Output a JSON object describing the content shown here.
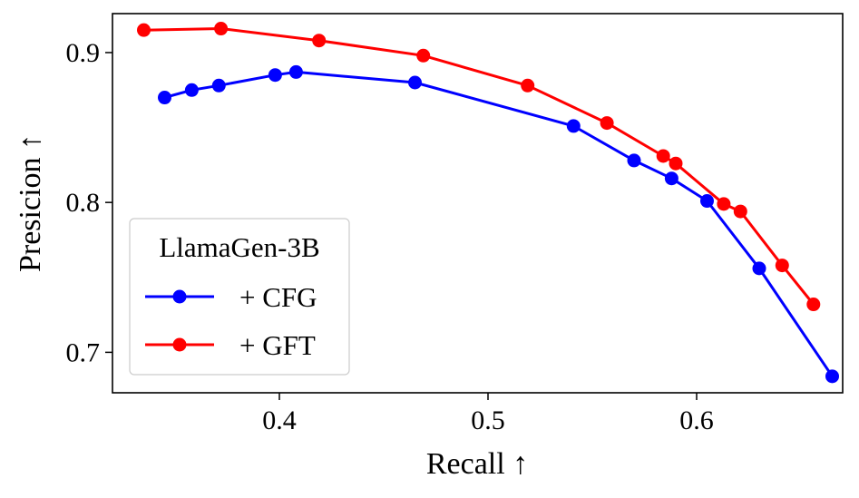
{
  "chart_data": {
    "type": "line",
    "title": "",
    "xlabel": "Recall ↑",
    "ylabel": "Presicion ↑",
    "xlim": [
      0.32,
      0.67
    ],
    "ylim": [
      0.673,
      0.926
    ],
    "xticks": [
      0.4,
      0.5,
      0.6
    ],
    "yticks": [
      0.7,
      0.8,
      0.9
    ],
    "xtick_labels": [
      "0.4",
      "0.5",
      "0.6"
    ],
    "ytick_labels": [
      "0.7",
      "0.8",
      "0.9"
    ],
    "grid": false,
    "legend": {
      "title": "LlamaGen-3B",
      "location": "lower-left"
    },
    "series": [
      {
        "name": "+ CFG",
        "color": "#0000ff",
        "x": [
          0.345,
          0.358,
          0.371,
          0.398,
          0.408,
          0.465,
          0.541,
          0.57,
          0.588,
          0.605,
          0.63,
          0.665
        ],
        "y": [
          0.87,
          0.875,
          0.878,
          0.885,
          0.887,
          0.88,
          0.851,
          0.828,
          0.816,
          0.801,
          0.756,
          0.684
        ]
      },
      {
        "name": "+ GFT",
        "color": "#ff0000",
        "x": [
          0.335,
          0.372,
          0.419,
          0.469,
          0.519,
          0.557,
          0.584,
          0.59,
          0.613,
          0.621,
          0.641,
          0.656
        ],
        "y": [
          0.915,
          0.916,
          0.908,
          0.898,
          0.878,
          0.853,
          0.831,
          0.826,
          0.799,
          0.794,
          0.758,
          0.732
        ]
      }
    ]
  }
}
